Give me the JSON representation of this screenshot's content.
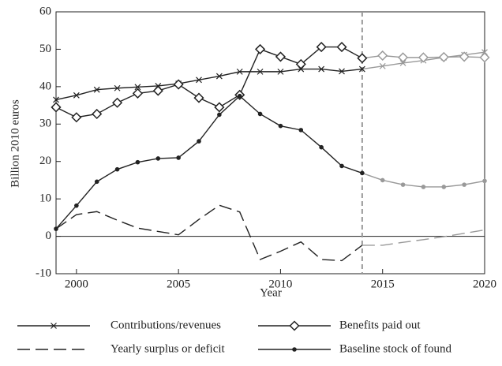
{
  "chart_data": {
    "type": "line",
    "x_label": "Year",
    "y_label": "Billion 2010 euros",
    "x": [
      1999,
      2000,
      2001,
      2002,
      2003,
      2004,
      2005,
      2006,
      2007,
      2008,
      2009,
      2010,
      2011,
      2012,
      2013,
      2014,
      2015,
      2016,
      2017,
      2018,
      2019,
      2020
    ],
    "xlim": [
      1999,
      2020
    ],
    "xticks": [
      2000,
      2005,
      2010,
      2015,
      2020
    ],
    "ylim": [
      -10,
      60
    ],
    "yticks": [
      -10,
      0,
      10,
      20,
      30,
      40,
      50,
      60
    ],
    "projection_start": 2014,
    "projection_color": "#999999",
    "series": [
      {
        "name": "Contributions/revenues",
        "color": "#222222",
        "marker": "x",
        "line_style": "solid",
        "values": [
          36.5,
          37.7,
          39.2,
          39.6,
          39.9,
          40.2,
          40.8,
          41.8,
          42.8,
          44,
          44,
          44,
          44.7,
          44.7,
          44.1,
          44.7,
          45.5,
          46.3,
          47,
          47.8,
          48.5,
          49.2
        ]
      },
      {
        "name": "Benefits paid out",
        "color": "#222222",
        "marker": "diamond",
        "line_style": "solid",
        "values": [
          34.5,
          31.8,
          32.7,
          35.7,
          38.2,
          38.9,
          40.6,
          37,
          34.5,
          37.8,
          50,
          48,
          46,
          50.6,
          50.6,
          47.6,
          48.3,
          47.8,
          47.8,
          47.9,
          48,
          47.8
        ]
      },
      {
        "name": "Yearly surplus or deficit",
        "color": "#222222",
        "marker": "none",
        "line_style": "dashed",
        "values": [
          2,
          5.8,
          6.6,
          4.3,
          2.2,
          1.3,
          0.4,
          4.5,
          8.3,
          6.5,
          -6.2,
          -4,
          -1.5,
          -6.2,
          -6.5,
          -2.4,
          -2.4,
          -1.6,
          -0.9,
          -0.1,
          0.8,
          1.7
        ]
      },
      {
        "name": "Baseline stock of found",
        "color": "#222222",
        "marker": "dot",
        "line_style": "solid",
        "values": [
          2,
          8.2,
          14.6,
          17.9,
          19.8,
          20.8,
          21,
          25.4,
          32.5,
          37.5,
          32.7,
          29.5,
          28.4,
          23.8,
          18.8,
          16.9,
          15,
          13.8,
          13.2,
          13.2,
          13.8,
          14.8
        ]
      }
    ]
  }
}
